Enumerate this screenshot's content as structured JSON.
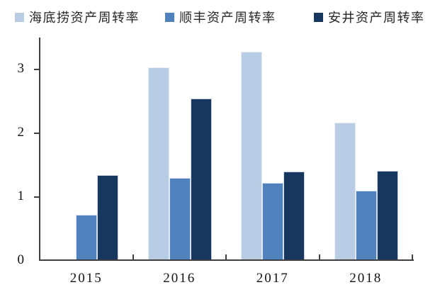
{
  "chart_data": {
    "type": "bar",
    "categories": [
      "2015",
      "2016",
      "2017",
      "2018"
    ],
    "series": [
      {
        "name": "海底捞资产周转率",
        "color": "#b8cce4",
        "values": [
          null,
          3.03,
          3.28,
          2.17
        ]
      },
      {
        "name": "顺丰资产周转率",
        "color": "#4f81bd",
        "values": [
          0.72,
          1.3,
          1.22,
          1.1
        ]
      },
      {
        "name": "安井资产周转率",
        "color": "#17375e",
        "values": [
          1.34,
          2.55,
          1.4,
          1.41
        ]
      }
    ],
    "title": "",
    "xlabel": "",
    "ylabel": "",
    "ylim": [
      0,
      3.5
    ],
    "yticks": [
      "0",
      "1",
      "2",
      "3"
    ],
    "grid": false,
    "legend_position": "top",
    "axis_color": "#3f3f3f",
    "text_color": "#111111"
  }
}
